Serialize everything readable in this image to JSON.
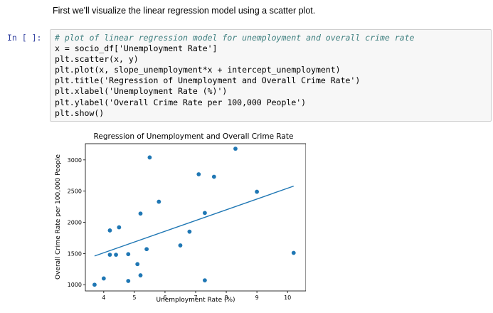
{
  "markdown": {
    "text": "First we'll visualize the linear regression model using a scatter plot."
  },
  "code_cell": {
    "prompt": "In [ ]:",
    "lines": [
      "# plot of linear regression model for unemployment and overall crime rate",
      "x = socio_df['Unemployment Rate']",
      "plt.scatter(x, y)",
      "plt.plot(x, slope_unemployment*x + intercept_unemployment)",
      "plt.title('Regression of Unemployment and Overall Crime Rate')",
      "plt.xlabel('Unemployment Rate (%)')",
      "plt.ylabel('Overall Crime Rate per 100,000 People')",
      "plt.show()"
    ]
  },
  "colors": {
    "series": "#1f77b4",
    "prompt": "#303f9f",
    "comment": "#408080",
    "string": "#ba2121"
  },
  "chart_data": {
    "type": "scatter",
    "title": "Regression of Unemployment and Overall Crime Rate",
    "xlabel": "Unemployment Rate (%)",
    "ylabel": "Overall Crime Rate per 100,000 People",
    "xlim": [
      3.4,
      10.6
    ],
    "ylim": [
      900,
      3260
    ],
    "xticks": [
      4,
      5,
      6,
      7,
      8,
      9,
      10
    ],
    "yticks": [
      1000,
      1500,
      2000,
      2500,
      3000
    ],
    "grid": false,
    "points": [
      {
        "x": 3.7,
        "y": 1000
      },
      {
        "x": 4.0,
        "y": 1100
      },
      {
        "x": 4.2,
        "y": 1870
      },
      {
        "x": 4.2,
        "y": 1480
      },
      {
        "x": 4.4,
        "y": 1480
      },
      {
        "x": 4.5,
        "y": 1920
      },
      {
        "x": 4.8,
        "y": 1490
      },
      {
        "x": 4.8,
        "y": 1060
      },
      {
        "x": 5.1,
        "y": 1330
      },
      {
        "x": 5.2,
        "y": 2140
      },
      {
        "x": 5.2,
        "y": 1150
      },
      {
        "x": 5.4,
        "y": 1570
      },
      {
        "x": 5.5,
        "y": 3040
      },
      {
        "x": 5.8,
        "y": 2330
      },
      {
        "x": 6.5,
        "y": 1630
      },
      {
        "x": 6.8,
        "y": 1850
      },
      {
        "x": 7.1,
        "y": 2770
      },
      {
        "x": 7.3,
        "y": 2150
      },
      {
        "x": 7.3,
        "y": 1070
      },
      {
        "x": 7.6,
        "y": 2730
      },
      {
        "x": 8.3,
        "y": 3180
      },
      {
        "x": 9.0,
        "y": 2490
      },
      {
        "x": 10.2,
        "y": 1510
      }
    ],
    "line": {
      "x": [
        3.7,
        10.2
      ],
      "y": [
        1460,
        2580
      ]
    }
  }
}
